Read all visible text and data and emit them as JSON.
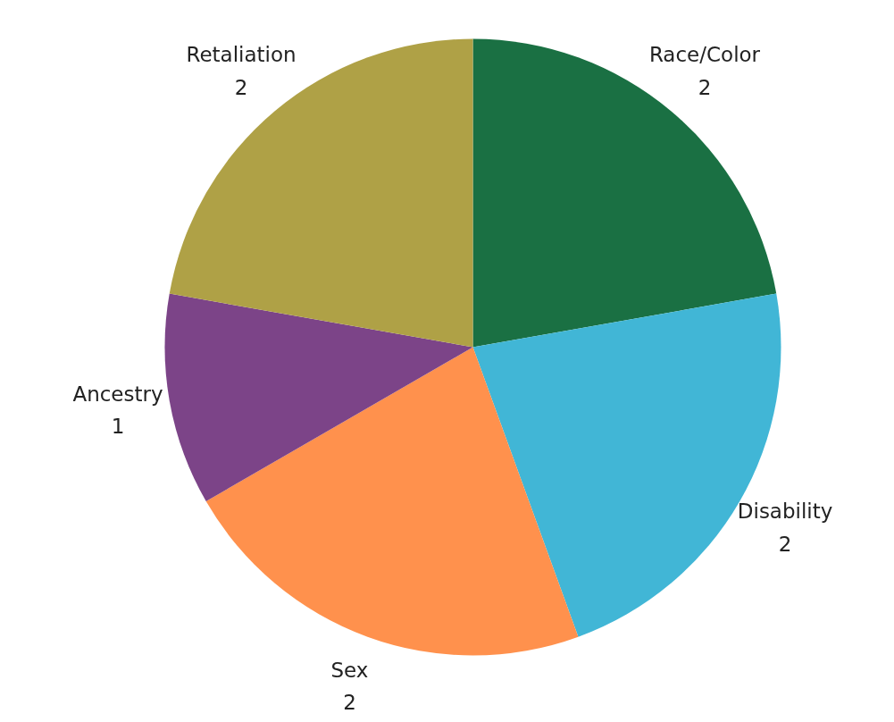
{
  "chart_data": {
    "type": "pie",
    "categories": [
      "Race/Color",
      "Disability",
      "Sex",
      "Ancestry",
      "Retaliation"
    ],
    "values": [
      2,
      2,
      2,
      1,
      2
    ],
    "colors": [
      "#1a7043",
      "#41b6d6",
      "#ff914d",
      "#7c4488",
      "#afa146"
    ],
    "data_labels": true
  }
}
